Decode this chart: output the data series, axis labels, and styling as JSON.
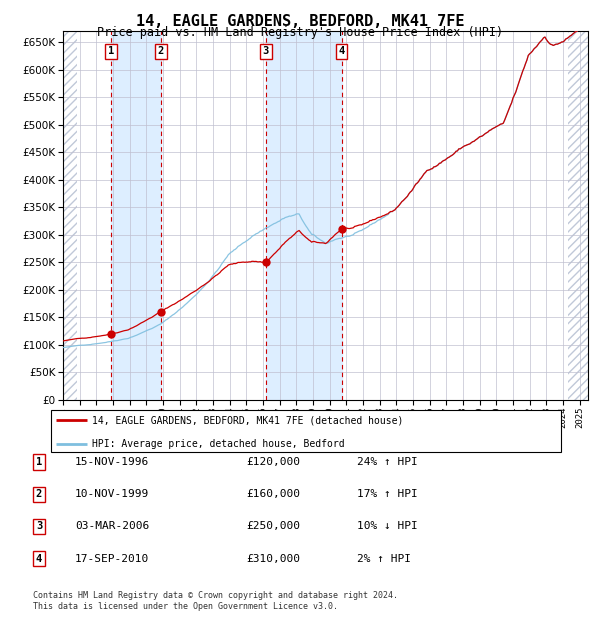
{
  "title": "14, EAGLE GARDENS, BEDFORD, MK41 7FE",
  "subtitle": "Price paid vs. HM Land Registry's House Price Index (HPI)",
  "title_fontsize": 11,
  "subtitle_fontsize": 8.5,
  "ylim": [
    0,
    670000
  ],
  "yticks": [
    0,
    50000,
    100000,
    150000,
    200000,
    250000,
    300000,
    350000,
    400000,
    450000,
    500000,
    550000,
    600000,
    650000
  ],
  "hpi_color": "#7fbfdf",
  "price_color": "#cc0000",
  "dot_color": "#cc0000",
  "vline_color": "#cc0000",
  "shade_color": "#ddeeff",
  "background_color": "#ffffff",
  "grid_color": "#c0c0d0",
  "transactions": [
    {
      "label": "1",
      "date": "15-NOV-1996",
      "year": 1996.88,
      "price": 120000,
      "hpi_pct": "24% ↑ HPI"
    },
    {
      "label": "2",
      "date": "10-NOV-1999",
      "year": 1999.87,
      "price": 160000,
      "hpi_pct": "17% ↑ HPI"
    },
    {
      "label": "3",
      "date": "03-MAR-2006",
      "year": 2006.17,
      "price": 250000,
      "hpi_pct": "10% ↓ HPI"
    },
    {
      "label": "4",
      "date": "17-SEP-2010",
      "year": 2010.71,
      "price": 310000,
      "hpi_pct": "2% ↑ HPI"
    }
  ],
  "legend_line1": "14, EAGLE GARDENS, BEDFORD, MK41 7FE (detached house)",
  "legend_line2": "HPI: Average price, detached house, Bedford",
  "footer_line1": "Contains HM Land Registry data © Crown copyright and database right 2024.",
  "footer_line2": "This data is licensed under the Open Government Licence v3.0."
}
